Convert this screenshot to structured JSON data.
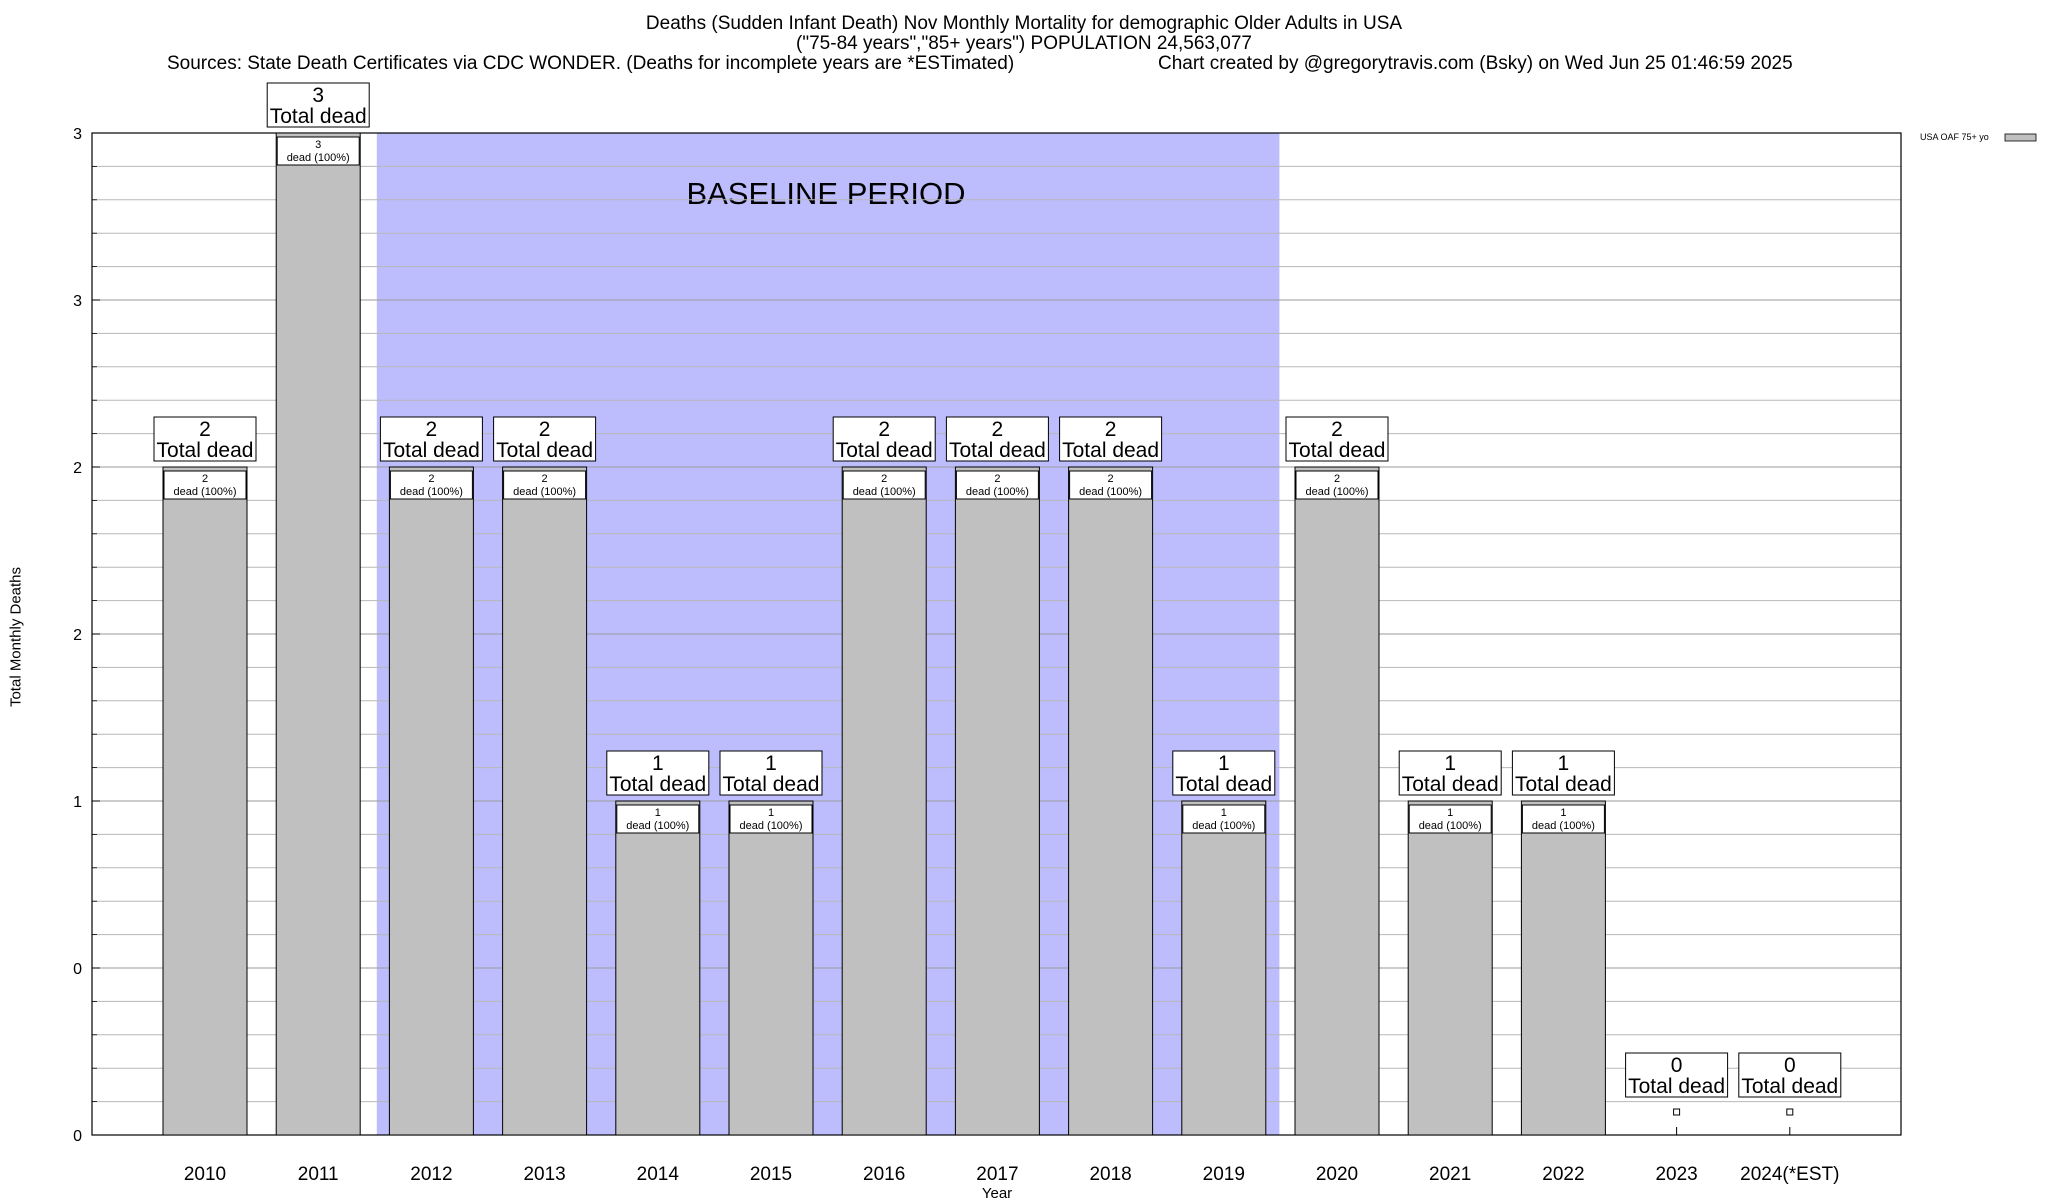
{
  "title": "Deaths (Sudden Infant Death) Nov Monthly Mortality for demographic Older Adults in USA",
  "subtitle": "(\"75-84 years\",\"85+ years\") POPULATION 24,563,077",
  "source": "Sources: State Death Certificates via CDC WONDER. (Deaths for incomplete years are *ESTimated)",
  "credit": "Chart created by @gregorytravis.com (Bsky) on Wed Jun 25 01:46:59 2025",
  "colors": {
    "bar": "#c0c0c0",
    "baseline_band": "#bdbdfd"
  },
  "chart_data": {
    "type": "bar",
    "title": "Deaths (Sudden Infant Death) Nov Monthly Mortality for demographic Older Adults in USA",
    "xlabel": "Year",
    "ylabel": "Total Monthly Deaths",
    "categories": [
      "2010",
      "2011",
      "2012",
      "2013",
      "2014",
      "2015",
      "2016",
      "2017",
      "2018",
      "2019",
      "2020",
      "2021",
      "2022",
      "2023",
      "2024(*EST)"
    ],
    "series": [
      {
        "name": "USA OAF 75+ yo",
        "values": [
          2,
          3,
          2,
          2,
          1,
          1,
          2,
          2,
          2,
          1,
          2,
          1,
          1,
          0,
          0
        ]
      }
    ],
    "top_labels": [
      "2",
      "3",
      "2",
      "2",
      "1",
      "1",
      "2",
      "2",
      "2",
      "1",
      "2",
      "1",
      "1",
      "0",
      "0"
    ],
    "top_label_suffix": "Total dead",
    "inner_labels": [
      "2",
      "3",
      "2",
      "2",
      "1",
      "1",
      "2",
      "2",
      "2",
      "1",
      "2",
      "1",
      "1",
      "",
      ""
    ],
    "inner_label_suffix": "dead (100%)",
    "ylim": [
      0,
      3
    ],
    "y_tick_labels": [
      "0",
      "0",
      "1",
      "2",
      "2",
      "3"
    ],
    "y_tick_values": [
      0,
      0.5,
      1,
      1.5,
      2,
      2.5
    ],
    "grid": true,
    "legend": "top-right",
    "annotations": [
      {
        "text": "BASELINE PERIOD",
        "x_from": "2012",
        "x_to": "2019"
      }
    ]
  }
}
